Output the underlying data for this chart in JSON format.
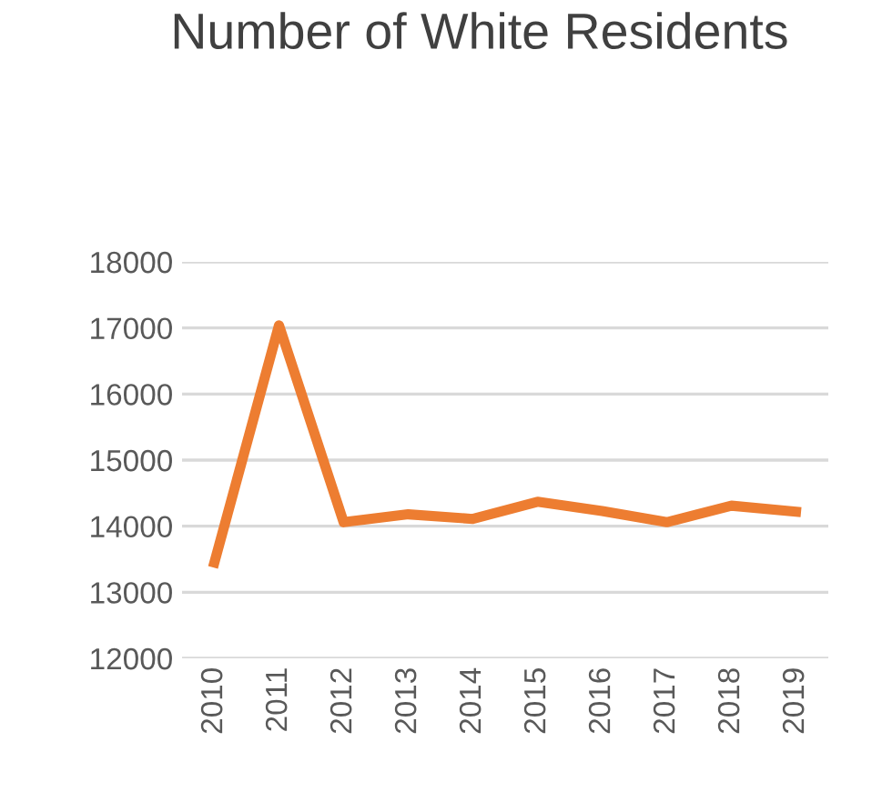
{
  "chart_data": {
    "type": "line",
    "title": "Number of White Residents",
    "categories": [
      "2010",
      "2011",
      "2012",
      "2013",
      "2014",
      "2015",
      "2016",
      "2017",
      "2018",
      "2019"
    ],
    "series": [
      {
        "color": "#ed7d31",
        "values": [
          13450,
          17040,
          14060,
          14180,
          14110,
          14370,
          14230,
          14060,
          14310,
          14220
        ]
      }
    ],
    "ylim": [
      12000,
      18000
    ],
    "yticks": [
      12000,
      13000,
      14000,
      15000,
      16000,
      17000,
      18000
    ],
    "grid": "y",
    "legend": false,
    "marker": "none",
    "line_style": "solid"
  }
}
